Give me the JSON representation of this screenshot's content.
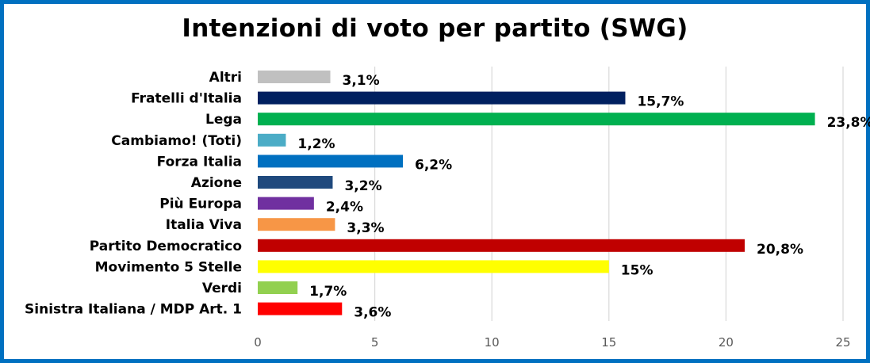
{
  "chart_data": {
    "type": "bar",
    "orientation": "horizontal",
    "title": "Intenzioni di voto per partito (SWG)",
    "xlabel": "",
    "ylabel": "",
    "xlim": [
      0,
      25
    ],
    "x_ticks": [
      "0",
      "5",
      "10",
      "15",
      "20",
      "25"
    ],
    "grid": true,
    "legend": "none",
    "categories": [
      "Altri",
      "Fratelli d'Italia",
      "Lega",
      "Cambiamo! (Toti)",
      "Forza Italia",
      "Azione",
      "Più Europa",
      "Italia Viva",
      "Partito Democratico",
      "Movimento 5 Stelle",
      "Verdi",
      "Sinistra Italiana / MDP Art. 1"
    ],
    "values": [
      3.1,
      15.7,
      23.8,
      1.2,
      6.2,
      3.2,
      2.4,
      3.3,
      20.8,
      15,
      1.7,
      3.6
    ],
    "data_labels": [
      "3,1%",
      "15,7%",
      "23,8%",
      "1,2%",
      "6,2%",
      "3,2%",
      "2,4%",
      "3,3%",
      "20,8%",
      "15%",
      "1,7%",
      "3,6%"
    ],
    "colors": [
      "#C0C0C0",
      "#002060",
      "#00B050",
      "#4BACC6",
      "#0070C0",
      "#1F497D",
      "#7030A0",
      "#F79646",
      "#C00000",
      "#FFFF00",
      "#92D050",
      "#FF0000"
    ],
    "frame_color": "#0070C0",
    "grid_color": "#D9D9D9"
  }
}
